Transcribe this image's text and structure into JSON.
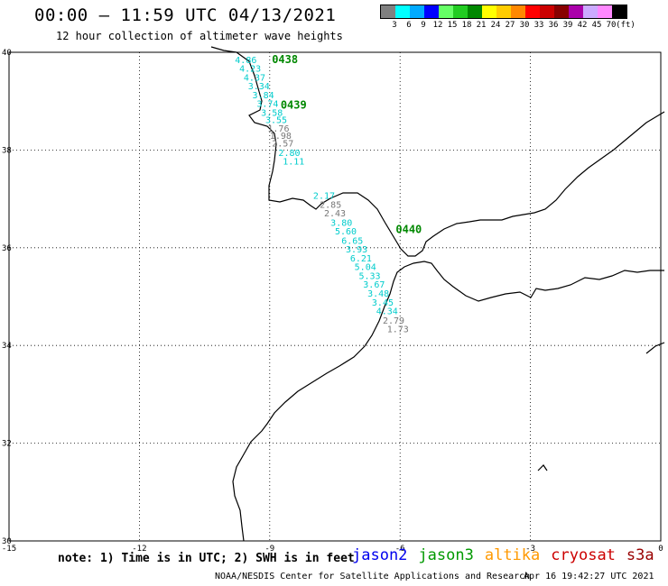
{
  "header": {
    "title": "00:00 – 11:59 UTC 04/13/2021",
    "subtitle": "12 hour collection of altimeter wave heights"
  },
  "legend": {
    "colors": [
      "#808080",
      "#00ffff",
      "#00aaff",
      "#0000ff",
      "#66ff66",
      "#22cc22",
      "#008800",
      "#ffff00",
      "#ffcc00",
      "#ff8800",
      "#ff0000",
      "#cc0000",
      "#880000",
      "#aa00aa",
      "#ccaaff",
      "#ff88ff",
      "#000000"
    ],
    "labels": [
      "3",
      "6",
      "9",
      "12",
      "15",
      "18",
      "21",
      "24",
      "27",
      "30",
      "33",
      "36",
      "39",
      "42",
      "45",
      "70",
      "(ft)"
    ]
  },
  "map": {
    "lat_labels": [
      "40",
      "38",
      "36",
      "34",
      "32",
      "30"
    ],
    "lon_labels": [
      "-15",
      "-12",
      "-9",
      "-6",
      "-3",
      "0"
    ]
  },
  "passes": [
    {
      "id": "0438",
      "lon": -8.95,
      "lat": 39.78
    },
    {
      "id": "0439",
      "lon": -8.75,
      "lat": 38.85
    },
    {
      "id": "0440",
      "lon": -6.1,
      "lat": 36.3
    }
  ],
  "points": [
    {
      "v": "4.86",
      "c": "#00cccc",
      "lon": -9.8,
      "lat": 39.78
    },
    {
      "v": "4.23",
      "c": "#00cccc",
      "lon": -9.7,
      "lat": 39.6
    },
    {
      "v": "4.37",
      "c": "#00cccc",
      "lon": -9.6,
      "lat": 39.42
    },
    {
      "v": "3.34",
      "c": "#00cccc",
      "lon": -9.5,
      "lat": 39.24
    },
    {
      "v": "3.84",
      "c": "#00cccc",
      "lon": -9.4,
      "lat": 39.06
    },
    {
      "v": "3.74",
      "c": "#00cccc",
      "lon": -9.3,
      "lat": 38.88
    },
    {
      "v": "3.58",
      "c": "#00cccc",
      "lon": -9.2,
      "lat": 38.7
    },
    {
      "v": "3.55",
      "c": "#00cccc",
      "lon": -9.1,
      "lat": 38.55
    },
    {
      "v": "1.76",
      "c": "#777777",
      "lon": -9.05,
      "lat": 38.38
    },
    {
      "v": "1.98",
      "c": "#777777",
      "lon": -9.0,
      "lat": 38.23
    },
    {
      "v": "2.57",
      "c": "#777777",
      "lon": -8.95,
      "lat": 38.07
    },
    {
      "v": "2.80",
      "c": "#00cccc",
      "lon": -8.8,
      "lat": 37.88
    },
    {
      "v": "1.11",
      "c": "#00cccc",
      "lon": -8.7,
      "lat": 37.7
    },
    {
      "v": "2.17",
      "c": "#00cccc",
      "lon": -8.0,
      "lat": 37.0
    },
    {
      "v": "2.85",
      "c": "#777777",
      "lon": -7.85,
      "lat": 36.82
    },
    {
      "v": "2.43",
      "c": "#777777",
      "lon": -7.75,
      "lat": 36.64
    },
    {
      "v": "3.80",
      "c": "#00cccc",
      "lon": -7.6,
      "lat": 36.45
    },
    {
      "v": "5.60",
      "c": "#00cccc",
      "lon": -7.5,
      "lat": 36.27
    },
    {
      "v": "6.65",
      "c": "#00cccc",
      "lon": -7.35,
      "lat": 36.08
    },
    {
      "v": "3.93",
      "c": "#00cccc",
      "lon": -7.25,
      "lat": 35.9
    },
    {
      "v": "6.21",
      "c": "#00cccc",
      "lon": -7.15,
      "lat": 35.72
    },
    {
      "v": "5.04",
      "c": "#00cccc",
      "lon": -7.05,
      "lat": 35.54
    },
    {
      "v": "5.33",
      "c": "#00cccc",
      "lon": -6.95,
      "lat": 35.36
    },
    {
      "v": "3.67",
      "c": "#00cccc",
      "lon": -6.85,
      "lat": 35.18
    },
    {
      "v": "3.48",
      "c": "#00cccc",
      "lon": -6.75,
      "lat": 35.0
    },
    {
      "v": "3.45",
      "c": "#00cccc",
      "lon": -6.65,
      "lat": 34.82
    },
    {
      "v": "4.34",
      "c": "#00cccc",
      "lon": -6.55,
      "lat": 34.64
    },
    {
      "v": "2.79",
      "c": "#777777",
      "lon": -6.4,
      "lat": 34.45
    },
    {
      "v": "1.73",
      "c": "#777777",
      "lon": -6.3,
      "lat": 34.27
    }
  ],
  "footer": {
    "note": "note: 1) Time is in UTC; 2) SWH is in feet",
    "credit": "NOAA/NESDIS Center for Satellite Applications and Research",
    "timestamp": "Apr 16 19:42:27 UTC 2021"
  },
  "satellites": [
    {
      "name": "jason2",
      "color": "#0000ee"
    },
    {
      "name": "jason3",
      "color": "#009900"
    },
    {
      "name": "altika",
      "color": "#ff9900"
    },
    {
      "name": "cryosat",
      "color": "#cc0000"
    },
    {
      "name": "s3a",
      "color": "#990000"
    }
  ]
}
